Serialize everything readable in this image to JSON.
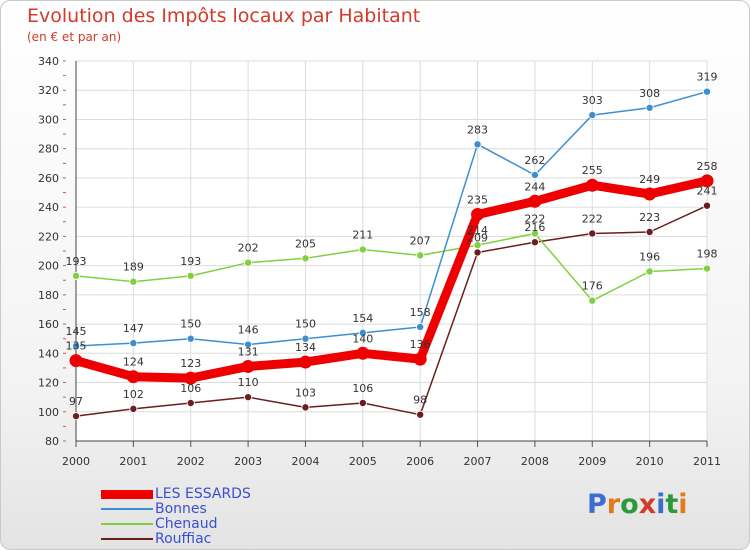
{
  "header": {
    "title": "Evolution des Impôts locaux par Habitant",
    "subtitle": "(en € et par an)"
  },
  "logo": {
    "text": "Proxiti",
    "colors": [
      "#3a6fd0",
      "#e07a1a",
      "#2d9a3a",
      "#d23a2a",
      "#3a6fd0",
      "#2d9a3a",
      "#e07a1a"
    ]
  },
  "chart_data": {
    "type": "line",
    "x": [
      "2000",
      "2001",
      "2002",
      "2003",
      "2004",
      "2005",
      "2006",
      "2007",
      "2008",
      "2009",
      "2010",
      "2011"
    ],
    "ylim": [
      80,
      340
    ],
    "yticks": [
      80,
      100,
      120,
      140,
      160,
      180,
      200,
      220,
      240,
      260,
      280,
      300,
      320,
      340
    ],
    "grid": true,
    "legend_position": "bottom-left",
    "series": [
      {
        "name": "LES ESSARDS",
        "color": "#ee0000",
        "values": [
          135,
          124,
          123,
          131,
          134,
          140,
          136,
          235,
          244,
          255,
          249,
          258
        ],
        "labels": [
          "135",
          "124",
          "123",
          "131",
          "134",
          "140",
          "136",
          "235",
          "244",
          "255",
          "249",
          "258"
        ]
      },
      {
        "name": "Bonnes",
        "color": "#3d8ed2",
        "values": [
          145,
          147,
          150,
          146,
          150,
          154,
          158,
          283,
          262,
          303,
          308,
          319
        ],
        "labels": [
          "145",
          "147",
          "150",
          "146",
          "150",
          "154",
          "158",
          "283",
          "262",
          "303",
          "308",
          "319"
        ]
      },
      {
        "name": "Chenaud",
        "color": "#80d040",
        "values": [
          193,
          189,
          193,
          202,
          205,
          211,
          207,
          214,
          222,
          176,
          196,
          198
        ],
        "labels": [
          "193",
          "189",
          "193",
          "202",
          "205",
          "211",
          "207",
          "214",
          "222",
          "176",
          "196",
          "198"
        ]
      },
      {
        "name": "Rouffiac",
        "color": "#6b1e1e",
        "values": [
          97,
          102,
          106,
          110,
          103,
          106,
          98,
          209,
          216,
          222,
          223,
          241
        ],
        "labels": [
          "97",
          "102",
          "106",
          "110",
          "103",
          "106",
          "98",
          "209",
          "216",
          "222",
          "223",
          "241"
        ]
      }
    ]
  }
}
